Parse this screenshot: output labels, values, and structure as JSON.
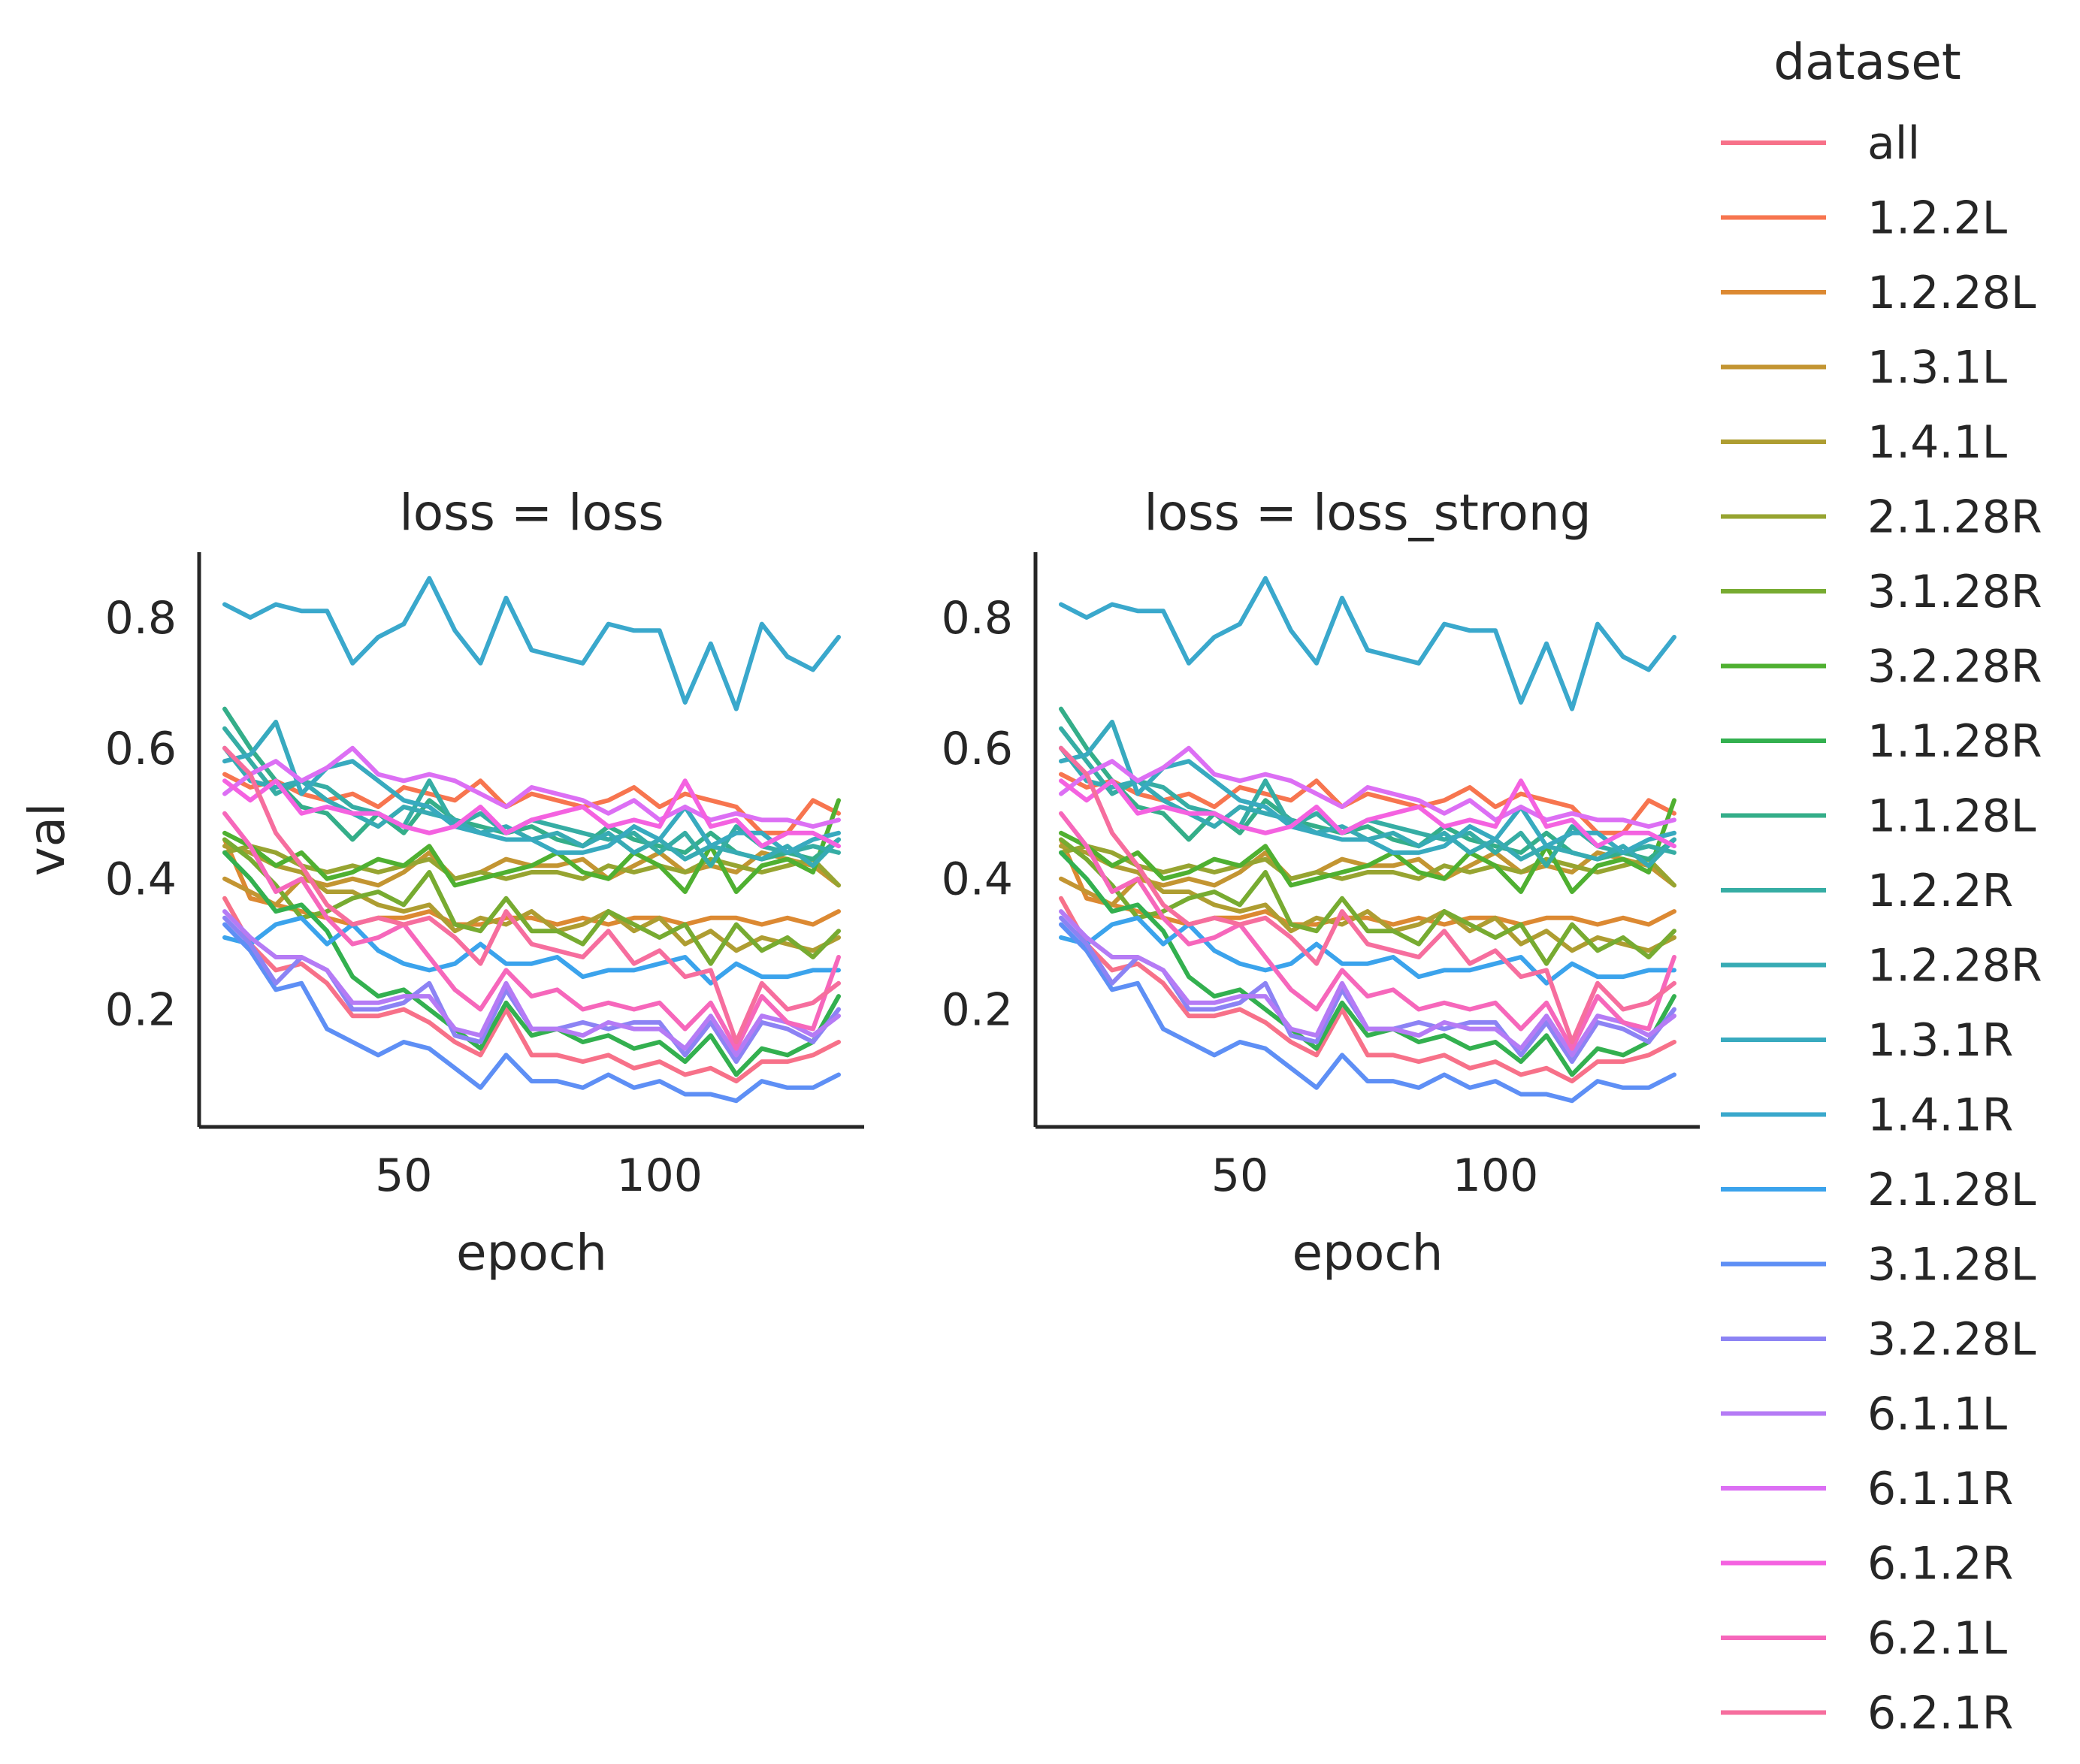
{
  "chart_data": {
    "type": "line",
    "legend_title": "dataset",
    "legend_placement": "right",
    "grid": false,
    "xlabel": "epoch",
    "ylabel": "val",
    "xlim": [
      10,
      140
    ],
    "ylim": [
      0.02,
      0.9
    ],
    "x_ticks": [
      50,
      100
    ],
    "y_ticks": [
      0.2,
      0.4,
      0.6,
      0.8
    ],
    "facets": [
      {
        "title": "loss = loss"
      },
      {
        "title": "loss = loss_strong"
      }
    ],
    "x": [
      15,
      20,
      25,
      30,
      35,
      40,
      45,
      50,
      55,
      60,
      65,
      70,
      75,
      80,
      85,
      90,
      95,
      100,
      105,
      110,
      115,
      120,
      125,
      130,
      135
    ],
    "series": [
      {
        "name": "all",
        "color": "#f77189",
        "values": [
          0.37,
          0.3,
          0.26,
          0.27,
          0.24,
          0.19,
          0.19,
          0.2,
          0.18,
          0.15,
          0.13,
          0.2,
          0.13,
          0.13,
          0.12,
          0.13,
          0.11,
          0.12,
          0.1,
          0.11,
          0.09,
          0.12,
          0.12,
          0.13,
          0.15
        ]
      },
      {
        "name": "1.2.2L",
        "color": "#f7754f",
        "values": [
          0.56,
          0.54,
          0.55,
          0.53,
          0.52,
          0.53,
          0.51,
          0.54,
          0.53,
          0.52,
          0.55,
          0.51,
          0.53,
          0.52,
          0.51,
          0.52,
          0.54,
          0.51,
          0.53,
          0.52,
          0.51,
          0.47,
          0.47,
          0.52,
          0.5
        ]
      },
      {
        "name": "1.2.28L",
        "color": "#dc8932",
        "values": [
          0.46,
          0.37,
          0.36,
          0.35,
          0.34,
          0.33,
          0.34,
          0.34,
          0.35,
          0.33,
          0.33,
          0.34,
          0.34,
          0.33,
          0.34,
          0.33,
          0.34,
          0.34,
          0.33,
          0.34,
          0.34,
          0.33,
          0.34,
          0.33,
          0.35
        ]
      },
      {
        "name": "1.3.1L",
        "color": "#c39532",
        "values": [
          0.4,
          0.38,
          0.36,
          0.4,
          0.39,
          0.4,
          0.39,
          0.41,
          0.44,
          0.4,
          0.41,
          0.43,
          0.42,
          0.42,
          0.43,
          0.4,
          0.42,
          0.44,
          0.41,
          0.42,
          0.41,
          0.44,
          0.43,
          0.42,
          0.39
        ]
      },
      {
        "name": "1.4.1L",
        "color": "#ae9d31",
        "values": [
          0.45,
          0.44,
          0.42,
          0.41,
          0.38,
          0.38,
          0.36,
          0.35,
          0.36,
          0.32,
          0.34,
          0.33,
          0.35,
          0.32,
          0.33,
          0.35,
          0.32,
          0.34,
          0.3,
          0.32,
          0.29,
          0.31,
          0.3,
          0.29,
          0.31
        ]
      },
      {
        "name": "2.1.28R",
        "color": "#97a431",
        "values": [
          0.44,
          0.45,
          0.44,
          0.42,
          0.41,
          0.42,
          0.41,
          0.42,
          0.43,
          0.4,
          0.41,
          0.4,
          0.41,
          0.41,
          0.4,
          0.42,
          0.41,
          0.42,
          0.41,
          0.43,
          0.42,
          0.41,
          0.42,
          0.43,
          0.39
        ]
      },
      {
        "name": "3.1.28R",
        "color": "#77ab31",
        "values": [
          0.46,
          0.43,
          0.39,
          0.34,
          0.35,
          0.37,
          0.38,
          0.36,
          0.41,
          0.33,
          0.32,
          0.37,
          0.32,
          0.32,
          0.3,
          0.35,
          0.33,
          0.31,
          0.33,
          0.27,
          0.33,
          0.29,
          0.31,
          0.28,
          0.32
        ]
      },
      {
        "name": "3.2.28R",
        "color": "#4fb031",
        "values": [
          0.47,
          0.45,
          0.42,
          0.44,
          0.4,
          0.41,
          0.43,
          0.42,
          0.45,
          0.39,
          0.4,
          0.41,
          0.42,
          0.44,
          0.41,
          0.4,
          0.44,
          0.42,
          0.38,
          0.45,
          0.38,
          0.42,
          0.43,
          0.41,
          0.52
        ]
      },
      {
        "name": "1.1.28R",
        "color": "#33b04f",
        "values": [
          0.44,
          0.4,
          0.35,
          0.36,
          0.32,
          0.25,
          0.22,
          0.23,
          0.2,
          0.17,
          0.14,
          0.21,
          0.16,
          0.17,
          0.15,
          0.16,
          0.14,
          0.15,
          0.12,
          0.16,
          0.1,
          0.14,
          0.13,
          0.15,
          0.22
        ]
      },
      {
        "name": "1.1.28L",
        "color": "#34ae89",
        "values": [
          0.66,
          0.6,
          0.55,
          0.51,
          0.5,
          0.46,
          0.5,
          0.47,
          0.52,
          0.49,
          0.48,
          0.47,
          0.48,
          0.46,
          0.45,
          0.48,
          0.46,
          0.45,
          0.44,
          0.47,
          0.44,
          0.43,
          0.44,
          0.43,
          0.46
        ]
      },
      {
        "name": "1.2.2R",
        "color": "#36ada4",
        "values": [
          0.63,
          0.58,
          0.53,
          0.55,
          0.54,
          0.51,
          0.5,
          0.48,
          0.55,
          0.48,
          0.5,
          0.47,
          0.49,
          0.48,
          0.47,
          0.46,
          0.47,
          0.44,
          0.47,
          0.42,
          0.48,
          0.45,
          0.44,
          0.45,
          0.44
        ]
      },
      {
        "name": "1.2.28R",
        "color": "#37abb4",
        "values": [
          0.6,
          0.55,
          0.54,
          0.55,
          0.52,
          0.5,
          0.48,
          0.51,
          0.5,
          0.49,
          0.47,
          0.48,
          0.46,
          0.47,
          0.45,
          0.47,
          0.44,
          0.46,
          0.43,
          0.45,
          0.44,
          0.43,
          0.45,
          0.42,
          0.46
        ]
      },
      {
        "name": "1.3.1R",
        "color": "#38aabf",
        "values": [
          0.58,
          0.59,
          0.64,
          0.53,
          0.57,
          0.58,
          0.55,
          0.52,
          0.51,
          0.48,
          0.47,
          0.46,
          0.46,
          0.44,
          0.44,
          0.45,
          0.48,
          0.46,
          0.51,
          0.45,
          0.47,
          0.47,
          0.44,
          0.46,
          0.47
        ]
      },
      {
        "name": "1.4.1R",
        "color": "#3aa8cc",
        "values": [
          0.82,
          0.8,
          0.82,
          0.81,
          0.81,
          0.73,
          0.77,
          0.79,
          0.86,
          0.78,
          0.73,
          0.83,
          0.75,
          0.74,
          0.73,
          0.79,
          0.78,
          0.78,
          0.67,
          0.76,
          0.66,
          0.79,
          0.74,
          0.72,
          0.77
        ]
      },
      {
        "name": "2.1.28L",
        "color": "#3ba3ec",
        "values": [
          0.31,
          0.3,
          0.33,
          0.34,
          0.3,
          0.33,
          0.29,
          0.27,
          0.26,
          0.27,
          0.3,
          0.27,
          0.27,
          0.28,
          0.25,
          0.26,
          0.26,
          0.27,
          0.28,
          0.24,
          0.27,
          0.25,
          0.25,
          0.26,
          0.26
        ]
      },
      {
        "name": "3.1.28L",
        "color": "#5e8ff5",
        "values": [
          0.33,
          0.29,
          0.23,
          0.24,
          0.17,
          0.15,
          0.13,
          0.15,
          0.14,
          0.11,
          0.08,
          0.13,
          0.09,
          0.09,
          0.08,
          0.1,
          0.08,
          0.09,
          0.07,
          0.07,
          0.06,
          0.09,
          0.08,
          0.08,
          0.1
        ]
      },
      {
        "name": "3.2.28L",
        "color": "#8c83f4",
        "values": [
          0.34,
          0.3,
          0.24,
          0.28,
          0.26,
          0.2,
          0.2,
          0.21,
          0.24,
          0.16,
          0.15,
          0.23,
          0.17,
          0.17,
          0.18,
          0.17,
          0.18,
          0.18,
          0.13,
          0.18,
          0.12,
          0.18,
          0.17,
          0.15,
          0.2
        ]
      },
      {
        "name": "6.1.1L",
        "color": "#b57bf5",
        "values": [
          0.35,
          0.31,
          0.28,
          0.28,
          0.26,
          0.21,
          0.21,
          0.22,
          0.22,
          0.17,
          0.16,
          0.24,
          0.17,
          0.17,
          0.16,
          0.18,
          0.17,
          0.17,
          0.14,
          0.19,
          0.13,
          0.19,
          0.18,
          0.16,
          0.19
        ]
      },
      {
        "name": "6.1.1R",
        "color": "#dc6ff4",
        "values": [
          0.53,
          0.56,
          0.58,
          0.55,
          0.57,
          0.6,
          0.56,
          0.55,
          0.56,
          0.55,
          0.53,
          0.51,
          0.54,
          0.53,
          0.52,
          0.5,
          0.52,
          0.49,
          0.51,
          0.49,
          0.5,
          0.49,
          0.49,
          0.48,
          0.49
        ]
      },
      {
        "name": "6.1.2R",
        "color": "#f462e0",
        "values": [
          0.55,
          0.52,
          0.55,
          0.5,
          0.51,
          0.5,
          0.5,
          0.48,
          0.47,
          0.48,
          0.51,
          0.47,
          0.49,
          0.5,
          0.51,
          0.48,
          0.49,
          0.48,
          0.55,
          0.48,
          0.49,
          0.45,
          0.47,
          0.47,
          0.45
        ]
      },
      {
        "name": "6.2.1L",
        "color": "#f667bb",
        "values": [
          0.5,
          0.45,
          0.38,
          0.4,
          0.34,
          0.3,
          0.31,
          0.33,
          0.28,
          0.23,
          0.2,
          0.26,
          0.22,
          0.23,
          0.2,
          0.21,
          0.2,
          0.21,
          0.17,
          0.21,
          0.14,
          0.22,
          0.18,
          0.17,
          0.28
        ]
      },
      {
        "name": "6.2.1R",
        "color": "#f66e9e",
        "values": [
          0.6,
          0.56,
          0.47,
          0.42,
          0.36,
          0.33,
          0.34,
          0.33,
          0.34,
          0.31,
          0.27,
          0.35,
          0.3,
          0.29,
          0.28,
          0.32,
          0.27,
          0.29,
          0.25,
          0.26,
          0.15,
          0.24,
          0.2,
          0.21,
          0.24
        ]
      }
    ]
  }
}
